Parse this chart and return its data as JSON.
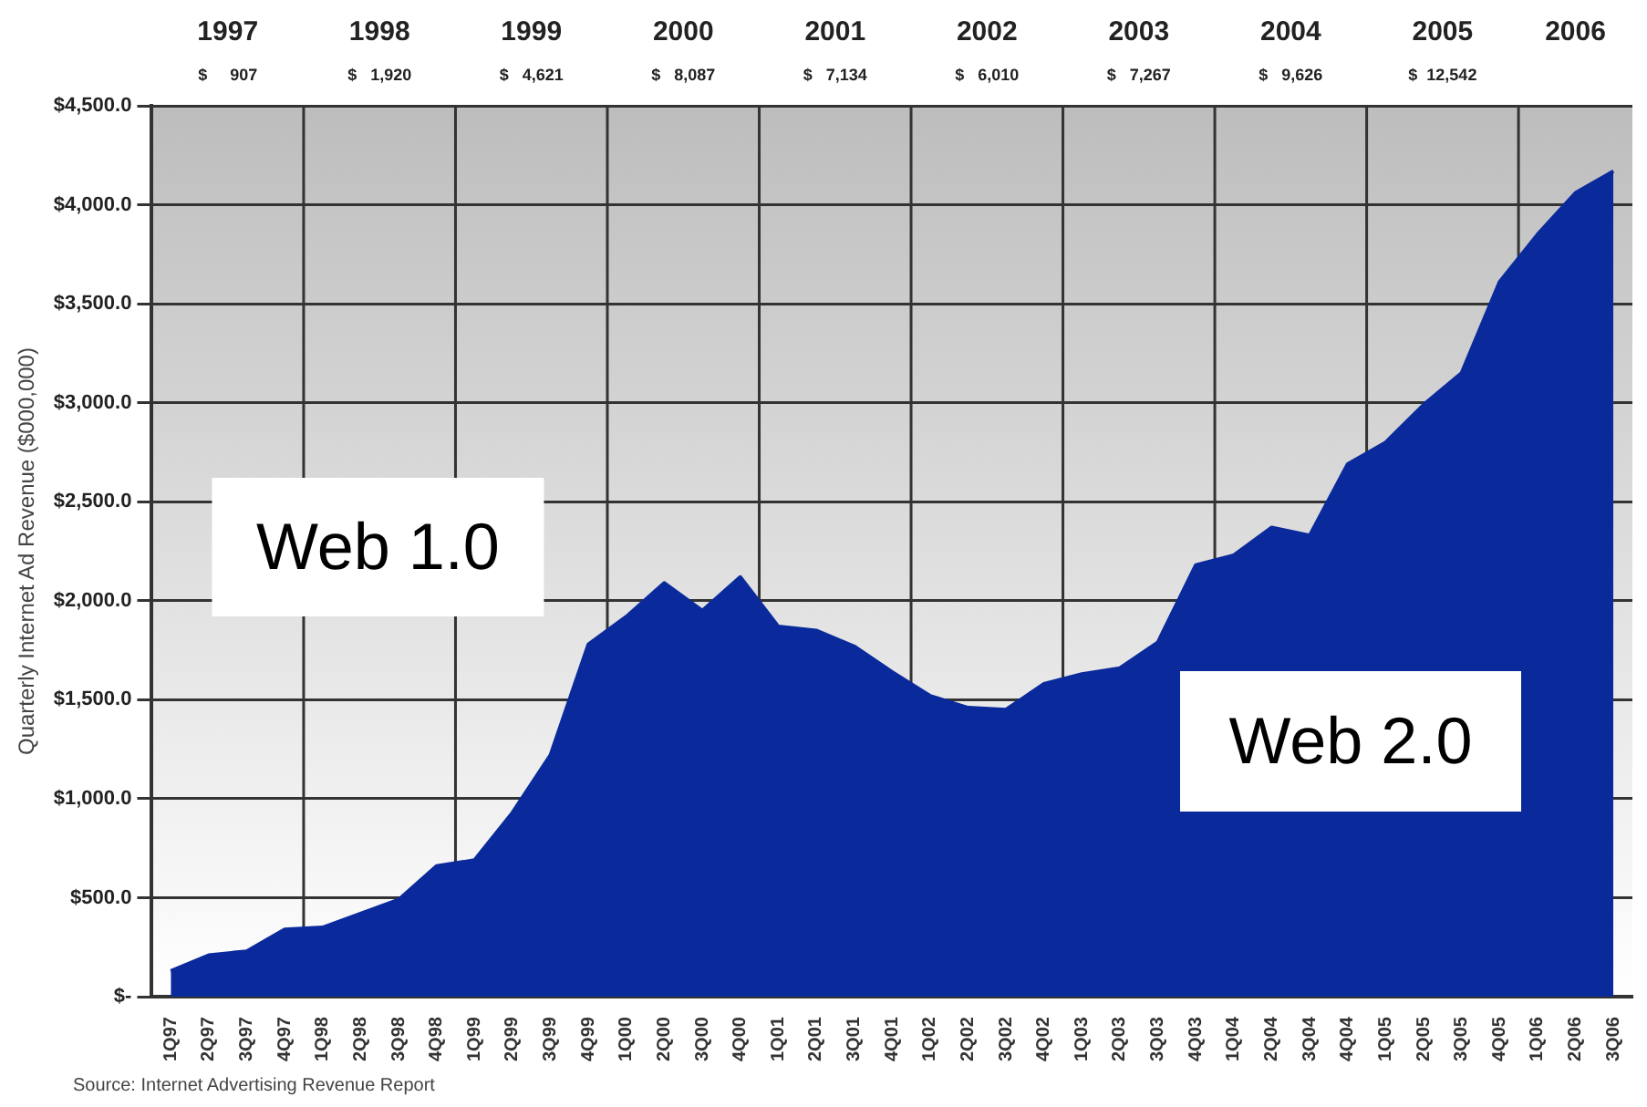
{
  "chart_data": {
    "type": "area",
    "ylabel": "Quarterly Internet Ad Revenue ($000,000)",
    "categories": [
      "1Q97",
      "2Q97",
      "3Q97",
      "4Q97",
      "1Q98",
      "2Q98",
      "3Q98",
      "4Q98",
      "1Q99",
      "2Q99",
      "3Q99",
      "4Q99",
      "1Q00",
      "2Q00",
      "3Q00",
      "4Q00",
      "1Q01",
      "2Q01",
      "3Q01",
      "4Q01",
      "1Q02",
      "2Q02",
      "3Q02",
      "4Q02",
      "1Q03",
      "2Q03",
      "3Q03",
      "4Q03",
      "1Q04",
      "2Q04",
      "3Q04",
      "4Q04",
      "1Q05",
      "2Q05",
      "3Q05",
      "4Q05",
      "1Q06",
      "2Q06",
      "3Q06"
    ],
    "series": [
      {
        "color": "#0a2a9c",
        "values": [
          130,
          210,
          230,
          340,
          350,
          420,
          490,
          660,
          690,
          930,
          1220,
          1780,
          1920,
          2090,
          1950,
          2120,
          1870,
          1850,
          1770,
          1640,
          1520,
          1460,
          1450,
          1580,
          1630,
          1660,
          1790,
          2180,
          2230,
          2370,
          2330,
          2690,
          2800,
          2990,
          3150,
          3610,
          3850,
          4060,
          4170
        ]
      }
    ],
    "ylim": [
      0,
      4500
    ],
    "yticks": [
      {
        "value": 0,
        "label": "$-"
      },
      {
        "value": 500,
        "label": "$500.0"
      },
      {
        "value": 1000,
        "label": "$1,000.0"
      },
      {
        "value": 1500,
        "label": "$1,500.0"
      },
      {
        "value": 2000,
        "label": "$2,000.0"
      },
      {
        "value": 2500,
        "label": "$2,500.0"
      },
      {
        "value": 3000,
        "label": "$3,000.0"
      },
      {
        "value": 3500,
        "label": "$3,500.0"
      },
      {
        "value": 4000,
        "label": "$4,000.0"
      },
      {
        "value": 4500,
        "label": "$4,500.0"
      }
    ],
    "grid": true,
    "annotations": [
      "1997\n$     907",
      "1998\n$   1,920",
      "1999\n$   4,621",
      "2000\n$   8,087",
      "2001\n$   7,134",
      "2002\n$   6,010",
      "2003\n$   7,267",
      "2004\n$   9,626",
      "2005\n$  12,542",
      "2006",
      "Web 1.0",
      "Web 2.0",
      "Source: Internet Advertising Revenue Report"
    ]
  }
}
